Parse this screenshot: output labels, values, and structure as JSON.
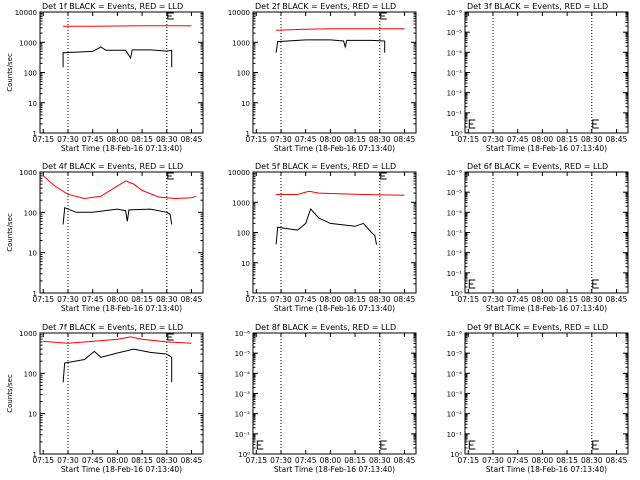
{
  "chart_data": [
    {
      "title": "Det 1f BLACK = Events, RED = LLD",
      "type": "line",
      "ylabel": "Counts/sec",
      "xlabel": "Start Time (18-Feb-16 07:13:40)",
      "x_ticks": [
        "07:15",
        "07:30",
        "07:45",
        "08:00",
        "08:15",
        "08:30",
        "08:45"
      ],
      "y_ticks": [
        "1",
        "10",
        "100",
        "1000",
        "10000"
      ],
      "yscale": "log",
      "ylim": [
        1,
        10000
      ],
      "markers": [
        "07:30",
        "08:30"
      ],
      "series": [
        {
          "color": "#ff0000",
          "points": [
            [
              "07:27",
              3400
            ],
            [
              "07:45",
              3400
            ],
            [
              "08:00",
              3450
            ],
            [
              "08:15",
              3500
            ],
            [
              "08:30",
              3500
            ],
            [
              "08:45",
              3500
            ]
          ]
        },
        {
          "color": "#000000",
          "points": [
            [
              "07:27",
              150
            ],
            [
              "07:27",
              450
            ],
            [
              "07:45",
              500
            ],
            [
              "07:50",
              700
            ],
            [
              "07:53",
              540
            ],
            [
              "08:05",
              540
            ],
            [
              "08:08",
              300
            ],
            [
              "08:09",
              560
            ],
            [
              "08:20",
              560
            ],
            [
              "08:30",
              510
            ],
            [
              "08:33",
              540
            ],
            [
              "08:33",
              150
            ]
          ]
        }
      ]
    },
    {
      "title": "Det 2f BLACK = Events, RED = LLD",
      "type": "line",
      "ylabel": "",
      "xlabel": "Start Time (18-Feb-16 07:13:40)",
      "x_ticks": [
        "07:15",
        "07:30",
        "07:45",
        "08:00",
        "08:15",
        "08:30",
        "08:45"
      ],
      "y_ticks": [
        "1",
        "10",
        "100",
        "1000",
        "10000"
      ],
      "yscale": "log",
      "ylim": [
        1,
        10000
      ],
      "markers": [
        "07:30",
        "08:30"
      ],
      "series": [
        {
          "color": "#ff0000",
          "points": [
            [
              "07:27",
              2500
            ],
            [
              "07:45",
              2700
            ],
            [
              "08:00",
              2800
            ],
            [
              "08:15",
              2800
            ],
            [
              "08:30",
              2800
            ],
            [
              "08:45",
              2800
            ]
          ]
        },
        {
          "color": "#000000",
          "points": [
            [
              "07:27",
              450
            ],
            [
              "07:28",
              1050
            ],
            [
              "07:45",
              1200
            ],
            [
              "08:00",
              1200
            ],
            [
              "08:08",
              1100
            ],
            [
              "08:09",
              700
            ],
            [
              "08:10",
              1150
            ],
            [
              "08:25",
              1150
            ],
            [
              "08:33",
              1100
            ],
            [
              "08:33",
              450
            ]
          ]
        }
      ]
    },
    {
      "title": "Det 3f BLACK = Events, RED = LLD",
      "type": "line",
      "ylabel": "",
      "xlabel": "Start Time (18-Feb-16 07:13:40)",
      "x_ticks": [
        "07:15",
        "07:30",
        "07:45",
        "08:00",
        "08:15",
        "08:30",
        "08:45"
      ],
      "y_ticks": [
        "10⁰",
        "10⁻¹",
        "10⁻²",
        "10⁻³",
        "10⁻⁴",
        "10⁻⁵",
        "10⁻⁶"
      ],
      "yscale": "log",
      "ylim": [
        1e-06,
        1
      ],
      "markers": [
        "07:30",
        "08:30"
      ],
      "series": []
    },
    {
      "title": "Det 4f BLACK = Events, RED = LLD",
      "type": "line",
      "ylabel": "Counts/sec",
      "xlabel": "Start Time (18-Feb-16 07:13:40)",
      "x_ticks": [
        "07:15",
        "07:30",
        "07:45",
        "08:00",
        "08:15",
        "08:30",
        "08:45"
      ],
      "y_ticks": [
        "1",
        "10",
        "100",
        "1000"
      ],
      "yscale": "log",
      "ylim": [
        1,
        1000
      ],
      "markers": [
        "07:30",
        "08:30"
      ],
      "series": [
        {
          "color": "#ff0000",
          "points": [
            [
              "07:15",
              800
            ],
            [
              "07:22",
              450
            ],
            [
              "07:30",
              280
            ],
            [
              "07:40",
              220
            ],
            [
              "07:50",
              250
            ],
            [
              "07:58",
              400
            ],
            [
              "08:05",
              600
            ],
            [
              "08:10",
              500
            ],
            [
              "08:15",
              350
            ],
            [
              "08:25",
              240
            ],
            [
              "08:35",
              220
            ],
            [
              "08:45",
              230
            ],
            [
              "08:48",
              250
            ]
          ]
        },
        {
          "color": "#000000",
          "points": [
            [
              "07:27",
              50
            ],
            [
              "07:28",
              130
            ],
            [
              "07:35",
              100
            ],
            [
              "07:45",
              100
            ],
            [
              "08:00",
              120
            ],
            [
              "08:05",
              110
            ],
            [
              "08:06",
              60
            ],
            [
              "08:07",
              115
            ],
            [
              "08:20",
              120
            ],
            [
              "08:30",
              100
            ],
            [
              "08:32",
              90
            ],
            [
              "08:33",
              50
            ]
          ]
        }
      ]
    },
    {
      "title": "Det 5f BLACK = Events, RED = LLD",
      "type": "line",
      "ylabel": "",
      "xlabel": "Start Time (18-Feb-16 07:13:40)",
      "x_ticks": [
        "07:15",
        "07:30",
        "07:45",
        "08:00",
        "08:15",
        "08:30",
        "08:45"
      ],
      "y_ticks": [
        "1",
        "10",
        "100",
        "1000",
        "10000"
      ],
      "yscale": "log",
      "ylim": [
        1,
        10000
      ],
      "markers": [
        "07:30",
        "08:30"
      ],
      "series": [
        {
          "color": "#ff0000",
          "points": [
            [
              "07:27",
              1800
            ],
            [
              "07:40",
              1800
            ],
            [
              "07:47",
              2300
            ],
            [
              "07:53",
              2000
            ],
            [
              "08:05",
              1900
            ],
            [
              "08:20",
              1800
            ],
            [
              "08:45",
              1700
            ]
          ]
        },
        {
          "color": "#000000",
          "points": [
            [
              "07:27",
              40
            ],
            [
              "07:28",
              150
            ],
            [
              "07:40",
              120
            ],
            [
              "07:45",
              200
            ],
            [
              "07:48",
              600
            ],
            [
              "07:53",
              300
            ],
            [
              "08:00",
              200
            ],
            [
              "08:15",
              160
            ],
            [
              "08:20",
              200
            ],
            [
              "08:25",
              100
            ],
            [
              "08:27",
              80
            ],
            [
              "08:28",
              40
            ]
          ]
        }
      ]
    },
    {
      "title": "Det 6f BLACK = Events, RED = LLD",
      "type": "line",
      "ylabel": "",
      "xlabel": "Start Time (18-Feb-16 07:13:40)",
      "x_ticks": [
        "07:15",
        "07:30",
        "07:45",
        "08:00",
        "08:15",
        "08:30",
        "08:45"
      ],
      "y_ticks": [
        "10⁰",
        "10⁻¹",
        "10⁻²",
        "10⁻³",
        "10⁻⁴",
        "10⁻⁵",
        "10⁻⁶"
      ],
      "yscale": "log",
      "ylim": [
        1e-06,
        1
      ],
      "markers": [
        "07:30",
        "08:30"
      ],
      "series": []
    },
    {
      "title": "Det 7f BLACK = Events, RED = LLD",
      "type": "line",
      "ylabel": "Counts/sec",
      "xlabel": "Start Time (18-Feb-16 07:13:40)",
      "x_ticks": [
        "07:15",
        "07:30",
        "07:45",
        "08:00",
        "08:15",
        "08:30",
        "08:45"
      ],
      "y_ticks": [
        "1",
        "10",
        "100",
        "1000"
      ],
      "yscale": "log",
      "ylim": [
        1,
        1000
      ],
      "markers": [
        "07:30",
        "08:30"
      ],
      "series": [
        {
          "color": "#ff0000",
          "points": [
            [
              "07:15",
              620
            ],
            [
              "07:30",
              560
            ],
            [
              "07:45",
              620
            ],
            [
              "08:00",
              700
            ],
            [
              "08:08",
              800
            ],
            [
              "08:15",
              700
            ],
            [
              "08:30",
              600
            ],
            [
              "08:45",
              560
            ]
          ]
        },
        {
          "color": "#000000",
          "points": [
            [
              "07:27",
              60
            ],
            [
              "07:28",
              180
            ],
            [
              "07:40",
              220
            ],
            [
              "07:46",
              350
            ],
            [
              "07:50",
              250
            ],
            [
              "08:00",
              320
            ],
            [
              "08:10",
              400
            ],
            [
              "08:20",
              330
            ],
            [
              "08:30",
              300
            ],
            [
              "08:33",
              250
            ],
            [
              "08:33",
              60
            ]
          ]
        }
      ]
    },
    {
      "title": "Det 8f BLACK = Events, RED = LLD",
      "type": "line",
      "ylabel": "",
      "xlabel": "Start Time (18-Feb-16 07:13:40)",
      "x_ticks": [
        "07:15",
        "07:30",
        "07:45",
        "08:00",
        "08:15",
        "08:30",
        "08:45"
      ],
      "y_ticks": [
        "10⁰",
        "10⁻¹",
        "10⁻²",
        "10⁻³",
        "10⁻⁴",
        "10⁻⁵",
        "10⁻⁶"
      ],
      "yscale": "log",
      "ylim": [
        1e-06,
        1
      ],
      "markers": [
        "07:30",
        "08:30"
      ],
      "series": []
    },
    {
      "title": "Det 9f BLACK = Events, RED = LLD",
      "type": "line",
      "ylabel": "",
      "xlabel": "Start Time (18-Feb-16 07:13:40)",
      "x_ticks": [
        "07:15",
        "07:30",
        "07:45",
        "08:00",
        "08:15",
        "08:30",
        "08:45"
      ],
      "y_ticks": [
        "10⁰",
        "10⁻¹",
        "10⁻²",
        "10⁻³",
        "10⁻⁴",
        "10⁻⁵",
        "10⁻⁶"
      ],
      "yscale": "log",
      "ylim": [
        1e-06,
        1
      ],
      "markers": [
        "07:30",
        "08:30"
      ],
      "series": []
    }
  ]
}
